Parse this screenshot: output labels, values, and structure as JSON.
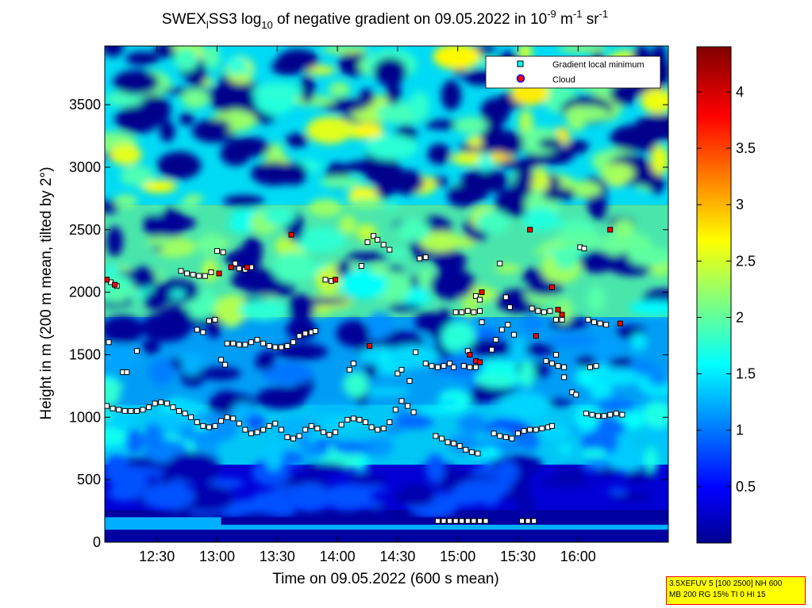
{
  "chart_data": {
    "type": "heatmap",
    "title_parts": {
      "prefix": "SWEX",
      "sub_l": "l",
      "mid": "SS3 log",
      "sub_10": "10",
      "rest": " of negative gradient on 09.05.2022 in 10",
      "sup_m9": "-9",
      "unit_m": " m",
      "sup_m1": "-1",
      "unit_sr": " sr",
      "sup_sr": "-1"
    },
    "xlabel": "Time on 09.05.2022 (600 s mean)",
    "ylabel": "Height in m (200 m mean, tilted by 2°)",
    "x_ticks": [
      "12:30",
      "13:00",
      "13:30",
      "14:00",
      "14:30",
      "15:00",
      "15:30",
      "16:00"
    ],
    "x_tick_minutes": [
      750,
      780,
      810,
      840,
      870,
      900,
      930,
      960
    ],
    "xlim_minutes": [
      724,
      1005
    ],
    "y_ticks": [
      0,
      500,
      1000,
      1500,
      2000,
      2500,
      3000,
      3500
    ],
    "ylim": [
      0,
      3970
    ],
    "colorbar": {
      "ticks": [
        0.5,
        1,
        1.5,
        2,
        2.5,
        3,
        3.5,
        4
      ],
      "tick_labels": [
        "0.5",
        "1",
        "1.5",
        "2",
        "2.5",
        "3",
        "3.5",
        "4"
      ],
      "range": [
        0,
        4.4
      ],
      "colormap": "jet"
    },
    "legend": {
      "placement": "top-right",
      "entries": [
        {
          "label": "Gradient local minimum",
          "marker": "square",
          "color": "#00ffff"
        },
        {
          "label": "Cloud",
          "marker": "circle",
          "color": "#ff0000"
        }
      ]
    },
    "series": [
      {
        "name": "Gradient local minimum",
        "points": [
          [
            725,
            2100
          ],
          [
            727,
            2080
          ],
          [
            730,
            2050
          ],
          [
            726,
            1600
          ],
          [
            733,
            1360
          ],
          [
            735,
            1360
          ],
          [
            740,
            1530
          ],
          [
            725,
            1090
          ],
          [
            728,
            1070
          ],
          [
            731,
            1060
          ],
          [
            734,
            1050
          ],
          [
            737,
            1050
          ],
          [
            740,
            1050
          ],
          [
            743,
            1060
          ],
          [
            746,
            1080
          ],
          [
            749,
            1110
          ],
          [
            752,
            1120
          ],
          [
            755,
            1110
          ],
          [
            758,
            1080
          ],
          [
            761,
            1050
          ],
          [
            764,
            1030
          ],
          [
            767,
            1000
          ],
          [
            770,
            960
          ],
          [
            773,
            930
          ],
          [
            776,
            920
          ],
          [
            779,
            930
          ],
          [
            782,
            970
          ],
          [
            785,
            1000
          ],
          [
            788,
            990
          ],
          [
            791,
            950
          ],
          [
            794,
            900
          ],
          [
            797,
            870
          ],
          [
            800,
            880
          ],
          [
            803,
            900
          ],
          [
            806,
            930
          ],
          [
            809,
            950
          ],
          [
            812,
            900
          ],
          [
            815,
            840
          ],
          [
            818,
            830
          ],
          [
            821,
            850
          ],
          [
            824,
            900
          ],
          [
            827,
            930
          ],
          [
            830,
            910
          ],
          [
            833,
            880
          ],
          [
            836,
            860
          ],
          [
            839,
            880
          ],
          [
            842,
            940
          ],
          [
            845,
            980
          ],
          [
            848,
            990
          ],
          [
            851,
            980
          ],
          [
            854,
            960
          ],
          [
            857,
            920
          ],
          [
            860,
            900
          ],
          [
            863,
            910
          ],
          [
            866,
            960
          ],
          [
            869,
            1060
          ],
          [
            872,
            1130
          ],
          [
            875,
            1090
          ],
          [
            878,
            1040
          ],
          [
            762,
            2170
          ],
          [
            765,
            2150
          ],
          [
            768,
            2140
          ],
          [
            771,
            2130
          ],
          [
            774,
            2130
          ],
          [
            777,
            2160
          ],
          [
            780,
            2330
          ],
          [
            783,
            2320
          ],
          [
            789,
            2230
          ],
          [
            791,
            2190
          ],
          [
            794,
            2180
          ],
          [
            797,
            2200
          ],
          [
            770,
            1700
          ],
          [
            773,
            1680
          ],
          [
            776,
            1770
          ],
          [
            779,
            1780
          ],
          [
            782,
            1460
          ],
          [
            784,
            1420
          ],
          [
            785,
            1590
          ],
          [
            788,
            1590
          ],
          [
            791,
            1580
          ],
          [
            794,
            1580
          ],
          [
            797,
            1600
          ],
          [
            800,
            1620
          ],
          [
            803,
            1590
          ],
          [
            806,
            1570
          ],
          [
            809,
            1560
          ],
          [
            812,
            1560
          ],
          [
            815,
            1570
          ],
          [
            818,
            1600
          ],
          [
            821,
            1650
          ],
          [
            824,
            1670
          ],
          [
            827,
            1680
          ],
          [
            829,
            1690
          ],
          [
            834,
            2100
          ],
          [
            837,
            2090
          ],
          [
            846,
            1380
          ],
          [
            848,
            1430
          ],
          [
            852,
            2210
          ],
          [
            855,
            2400
          ],
          [
            858,
            2450
          ],
          [
            860,
            2420
          ],
          [
            863,
            2380
          ],
          [
            866,
            2340
          ],
          [
            870,
            1350
          ],
          [
            872,
            1380
          ],
          [
            876,
            1290
          ],
          [
            879,
            1520
          ],
          [
            881,
            2270
          ],
          [
            884,
            2280
          ],
          [
            884,
            1430
          ],
          [
            887,
            1410
          ],
          [
            890,
            1400
          ],
          [
            893,
            1410
          ],
          [
            896,
            1430
          ],
          [
            898,
            1400
          ],
          [
            899,
            1840
          ],
          [
            902,
            1840
          ],
          [
            905,
            1850
          ],
          [
            908,
            1840
          ],
          [
            911,
            1850
          ],
          [
            903,
            1410
          ],
          [
            906,
            1400
          ],
          [
            909,
            1400
          ],
          [
            905,
            1530
          ],
          [
            909,
            1970
          ],
          [
            911,
            1940
          ],
          [
            912,
            1760
          ],
          [
            889,
            850
          ],
          [
            892,
            830
          ],
          [
            895,
            800
          ],
          [
            898,
            790
          ],
          [
            901,
            770
          ],
          [
            904,
            740
          ],
          [
            907,
            720
          ],
          [
            910,
            710
          ],
          [
            918,
            870
          ],
          [
            921,
            850
          ],
          [
            924,
            840
          ],
          [
            927,
            830
          ],
          [
            930,
            870
          ],
          [
            933,
            890
          ],
          [
            936,
            900
          ],
          [
            939,
            900
          ],
          [
            942,
            910
          ],
          [
            945,
            920
          ],
          [
            947,
            930
          ],
          [
            917,
            1540
          ],
          [
            919,
            1620
          ],
          [
            922,
            1700
          ],
          [
            925,
            1740
          ],
          [
            928,
            1660
          ],
          [
            926,
            1880
          ],
          [
            924,
            1960
          ],
          [
            921,
            2230
          ],
          [
            937,
            1870
          ],
          [
            940,
            1850
          ],
          [
            943,
            1840
          ],
          [
            946,
            1850
          ],
          [
            949,
            1780
          ],
          [
            952,
            1780
          ],
          [
            944,
            1450
          ],
          [
            947,
            1430
          ],
          [
            950,
            1410
          ],
          [
            953,
            1400
          ],
          [
            949,
            1500
          ],
          [
            953,
            1320
          ],
          [
            957,
            1200
          ],
          [
            959,
            1180
          ],
          [
            961,
            2360
          ],
          [
            963,
            2350
          ],
          [
            965,
            1780
          ],
          [
            968,
            1760
          ],
          [
            971,
            1750
          ],
          [
            974,
            1740
          ],
          [
            966,
            1400
          ],
          [
            969,
            1410
          ],
          [
            964,
            1030
          ],
          [
            967,
            1020
          ],
          [
            970,
            1010
          ],
          [
            973,
            1010
          ],
          [
            976,
            1020
          ],
          [
            979,
            1030
          ],
          [
            982,
            1020
          ],
          [
            890,
            170
          ],
          [
            893,
            170
          ],
          [
            896,
            170
          ],
          [
            899,
            170
          ],
          [
            902,
            170
          ],
          [
            905,
            170
          ],
          [
            908,
            170
          ],
          [
            911,
            170
          ],
          [
            914,
            170
          ],
          [
            932,
            170
          ],
          [
            935,
            170
          ],
          [
            938,
            170
          ]
        ]
      },
      {
        "name": "Cloud",
        "points": [
          [
            725,
            2100
          ],
          [
            729,
            2060
          ],
          [
            781,
            2150
          ],
          [
            787,
            2200
          ],
          [
            795,
            2200
          ],
          [
            817,
            2460
          ],
          [
            839,
            2100
          ],
          [
            856,
            1570
          ],
          [
            906,
            1500
          ],
          [
            909,
            1450
          ],
          [
            911,
            1440
          ],
          [
            912,
            2000
          ],
          [
            936,
            2500
          ],
          [
            939,
            1650
          ],
          [
            947,
            2040
          ],
          [
            950,
            1860
          ],
          [
            952,
            1820
          ],
          [
            976,
            2500
          ],
          [
            981,
            1750
          ]
        ]
      }
    ],
    "field_description_bands": [
      {
        "y": [
          0,
          260
        ],
        "level": 0.15
      },
      {
        "y": [
          260,
          620
        ],
        "level": 0.4
      },
      {
        "y": [
          620,
          1100
        ],
        "level": 1.5
      },
      {
        "y": [
          1100,
          1800
        ],
        "level": 1.3
      },
      {
        "y": [
          1800,
          2700
        ],
        "level": 2.0
      },
      {
        "y": [
          2700,
          3970
        ],
        "level": 1.6
      }
    ]
  },
  "info_box": {
    "line1": "3.5XEFUV 5 [100 2500] NH 600",
    "line2": "MB 200 RG 15% TI 0 HI 15"
  }
}
